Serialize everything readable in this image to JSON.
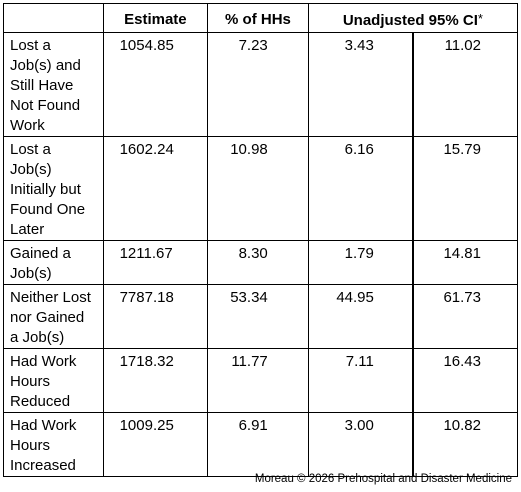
{
  "table": {
    "headers": {
      "row_label": "",
      "estimate": "Estimate",
      "pct": "% of HHs",
      "ci": "Unadjusted 95% CI",
      "ci_note": "*"
    },
    "rows": [
      {
        "label": "Lost a Job(s) and Still Have Not Found Work",
        "estimate": "1054.85",
        "pct": "7.23",
        "ci_low": "3.43",
        "ci_high": "11.02"
      },
      {
        "label": "Lost a Job(s) Initially but Found One Later",
        "estimate": "1602.24",
        "pct": "10.98",
        "ci_low": "6.16",
        "ci_high": "15.79"
      },
      {
        "label": "Gained a Job(s)",
        "estimate": "1211.67",
        "pct": "8.30",
        "ci_low": "1.79",
        "ci_high": "14.81"
      },
      {
        "label": "Neither Lost nor Gained a Job(s)",
        "estimate": "7787.18",
        "pct": "53.34",
        "ci_low": "44.95",
        "ci_high": "61.73"
      },
      {
        "label": "Had Work Hours Reduced",
        "estimate": "1718.32",
        "pct": "11.77",
        "ci_low": "7.11",
        "ci_high": "16.43"
      },
      {
        "label": "Had Work Hours Increased",
        "estimate": "1009.25",
        "pct": "6.91",
        "ci_low": "3.00",
        "ci_high": "10.82"
      }
    ]
  },
  "footer": {
    "credit": "Moreau © 2026 Prehospital and Disaster Medicine"
  }
}
